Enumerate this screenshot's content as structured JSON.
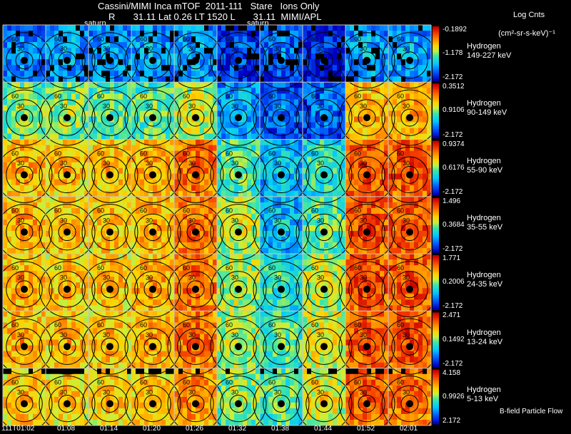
{
  "header": {
    "title": "Cassini/MIMI Inca mTOF  2011-111   Stare   Ions Only",
    "subtitle": "R       31.11 Lat 0.26 LT 1520 L       31.11  MIMI/APL",
    "colorbar_title": "Log Cnts",
    "colorbar_units": "(cm²-sr-s-keV)⁻¹",
    "saturn_labels": [
      "saturn",
      "saturn"
    ],
    "footer_note": "B-field Particle Flow"
  },
  "colors": {
    "grid": "#c8c8c8",
    "contour": "#000000",
    "background": "#000000"
  },
  "chart_data": {
    "type": "heatmap",
    "title": "Cassini/MIMI Inca mTOF  2011-111   Stare   Ions Only",
    "x_time_labels": [
      "111T01:02",
      "01:08",
      "01:14",
      "01:20",
      "01:26",
      "01:32",
      "01:38",
      "01:44",
      "01:52",
      "02:01"
    ],
    "contour_levels": [
      "30",
      "60",
      "90",
      "120",
      "150"
    ],
    "rows": [
      {
        "species": "Hydrogen",
        "energy": "149-227 keV",
        "cb_max": "-0.1892",
        "cb_mid": "-1.178",
        "cb_min": "-2.172"
      },
      {
        "species": "Hydrogen",
        "energy": "90-149 keV",
        "cb_max": "0.3512",
        "cb_mid": "0.9106",
        "cb_min": "-2.172"
      },
      {
        "species": "Hydrogen",
        "energy": "55-90 keV",
        "cb_max": "0.9374",
        "cb_mid": "0.6176",
        "cb_min": "-2.172"
      },
      {
        "species": "Hydrogen",
        "energy": "35-55 keV",
        "cb_max": "1.496",
        "cb_mid": "0.3684",
        "cb_min": "-2.172"
      },
      {
        "species": "Hydrogen",
        "energy": "24-35 keV",
        "cb_max": "1.771",
        "cb_mid": "0.2006",
        "cb_min": "-2.172"
      },
      {
        "species": "Hydrogen",
        "energy": "13-24 keV",
        "cb_max": "2.471",
        "cb_mid": "0.1492",
        "cb_min": "-2.172"
      },
      {
        "species": "Hydrogen",
        "energy": "5-13 keV",
        "cb_max": "4.158",
        "cb_mid": "0.9926",
        "cb_min": "2.172"
      }
    ],
    "intensity_by_row_col": [
      [
        0.25,
        0.3,
        0.28,
        0.3,
        0.3,
        0.15,
        0.2,
        0.1,
        0.3,
        0.3
      ],
      [
        0.55,
        0.55,
        0.5,
        0.5,
        0.6,
        0.3,
        0.2,
        0.2,
        0.75,
        0.75
      ],
      [
        0.75,
        0.72,
        0.72,
        0.75,
        0.85,
        0.5,
        0.35,
        0.45,
        0.9,
        0.9
      ],
      [
        0.75,
        0.72,
        0.72,
        0.75,
        0.85,
        0.6,
        0.35,
        0.5,
        0.9,
        0.9
      ],
      [
        0.75,
        0.72,
        0.72,
        0.75,
        0.85,
        0.6,
        0.45,
        0.6,
        0.9,
        0.9
      ],
      [
        0.75,
        0.72,
        0.72,
        0.75,
        0.85,
        0.6,
        0.5,
        0.65,
        0.9,
        0.9
      ],
      [
        0.72,
        0.7,
        0.7,
        0.72,
        0.8,
        0.55,
        0.5,
        0.65,
        0.88,
        0.85
      ]
    ],
    "colorscale": "rainbow"
  }
}
